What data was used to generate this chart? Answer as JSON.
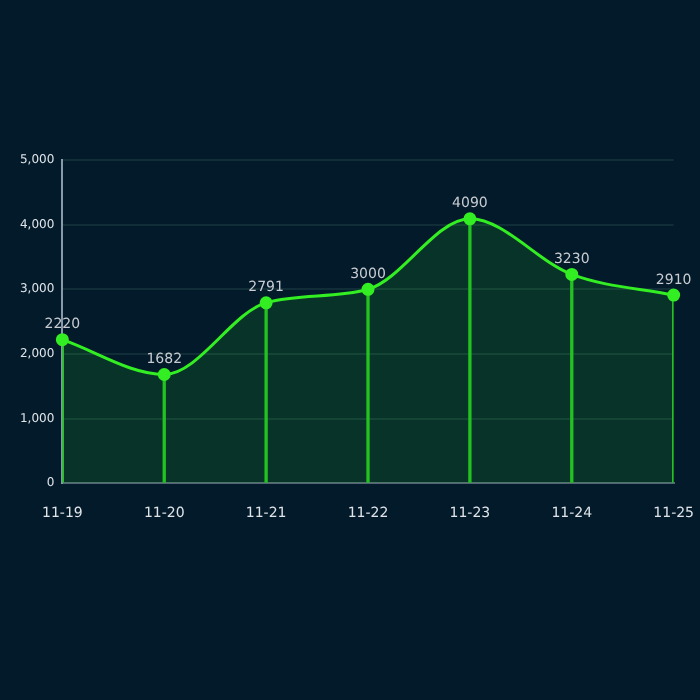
{
  "chart_data": {
    "type": "area",
    "categories": [
      "11-19",
      "11-20",
      "11-21",
      "11-22",
      "11-23",
      "11-24",
      "11-25"
    ],
    "series": [
      {
        "color": "#33ee22",
        "values": [
          2220,
          1682,
          2791,
          3000,
          4090,
          3230,
          2910
        ],
        "value_labels": [
          "2220",
          "1682",
          "2791",
          "3000",
          "4090",
          "3230",
          "2910"
        ]
      },
      {
        "type": "bar",
        "color": "#22bb22",
        "values": [
          2220,
          1682,
          2791,
          3000,
          4090,
          3230,
          2910
        ]
      }
    ],
    "ylim": [
      0,
      5000
    ],
    "yticks": [
      {
        "value": 0,
        "label": "0"
      },
      {
        "value": 1000,
        "label": "1,000"
      },
      {
        "value": 2000,
        "label": "2,000"
      },
      {
        "value": 3000,
        "label": "3,000"
      },
      {
        "value": 4000,
        "label": "4,000"
      },
      {
        "value": 5000,
        "label": "5,000"
      }
    ],
    "grid": "y",
    "marker": "circle",
    "legend": false
  }
}
